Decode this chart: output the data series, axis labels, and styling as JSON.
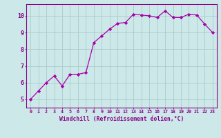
{
  "x": [
    0,
    1,
    2,
    3,
    4,
    5,
    6,
    7,
    8,
    9,
    10,
    11,
    12,
    13,
    14,
    15,
    16,
    17,
    18,
    19,
    20,
    21,
    22,
    23
  ],
  "y": [
    5.0,
    5.5,
    6.0,
    6.4,
    5.8,
    6.5,
    6.5,
    6.6,
    8.4,
    8.8,
    9.2,
    9.55,
    9.6,
    10.1,
    10.05,
    10.0,
    9.9,
    10.3,
    9.9,
    9.9,
    10.1,
    10.05,
    9.5,
    9.0
  ],
  "line_color": "#aa00aa",
  "marker": "D",
  "marker_size": 2.2,
  "bg_color": "#cce8e8",
  "grid_color": "#aacccc",
  "xlabel": "Windchill (Refroidissement éolien,°C)",
  "xlabel_color": "#880088",
  "tick_color": "#880088",
  "spine_color": "#880088",
  "ylim": [
    4.5,
    10.7
  ],
  "xlim": [
    -0.5,
    23.5
  ],
  "yticks": [
    5,
    6,
    7,
    8,
    9,
    10
  ],
  "xticks": [
    0,
    1,
    2,
    3,
    4,
    5,
    6,
    7,
    8,
    9,
    10,
    11,
    12,
    13,
    14,
    15,
    16,
    17,
    18,
    19,
    20,
    21,
    22,
    23
  ],
  "xlabel_fontsize": 5.8,
  "xtick_fontsize": 4.8,
  "ytick_fontsize": 6.0
}
